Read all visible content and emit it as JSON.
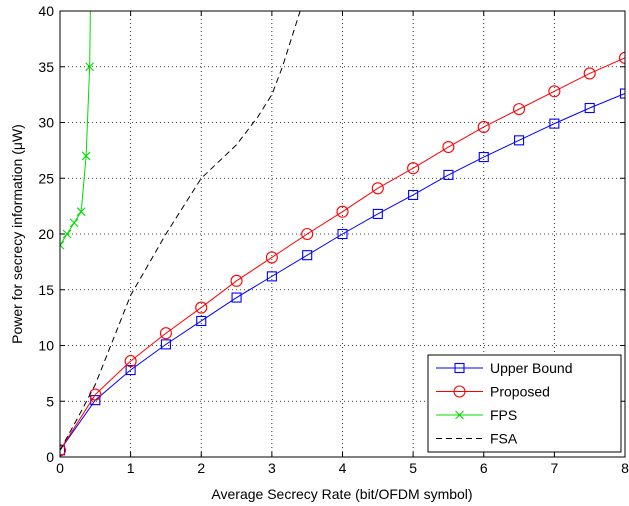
{
  "chart_data": {
    "type": "line",
    "xlabel": "Average Secrecy Rate (bit/OFDM symbol)",
    "ylabel": "Power for secrecy information (μW)",
    "xlim": [
      0,
      8
    ],
    "ylim": [
      0,
      40
    ],
    "xticks": [
      "0",
      "1",
      "2",
      "3",
      "4",
      "5",
      "6",
      "7",
      "8"
    ],
    "yticks": [
      "0",
      "5",
      "10",
      "15",
      "20",
      "25",
      "30",
      "35",
      "40"
    ],
    "grid": "dotted",
    "legend_position": "bottom-right",
    "series": [
      {
        "name": "Upper Bound",
        "color": "#0000ff",
        "marker": "square",
        "line": "solid",
        "x": [
          0,
          0.5,
          1,
          1.5,
          2,
          2.5,
          3,
          3.5,
          4,
          4.5,
          5,
          5.5,
          6,
          6.5,
          7,
          7.5,
          8
        ],
        "y": [
          0.6,
          5.1,
          7.8,
          10.1,
          12.2,
          14.3,
          16.2,
          18.1,
          20.0,
          21.8,
          23.5,
          25.3,
          26.9,
          28.4,
          29.9,
          31.3,
          32.6
        ]
      },
      {
        "name": "Proposed",
        "color": "#ff0000",
        "marker": "circle",
        "line": "solid",
        "x": [
          0,
          0.5,
          1,
          1.5,
          2,
          2.5,
          3,
          3.5,
          4,
          4.5,
          5,
          5.5,
          6,
          6.5,
          7,
          7.5,
          8
        ],
        "y": [
          0.6,
          5.6,
          8.6,
          11.1,
          13.4,
          15.8,
          17.9,
          20.0,
          22.0,
          24.1,
          25.9,
          27.8,
          29.6,
          31.2,
          32.8,
          34.4,
          35.8
        ]
      },
      {
        "name": "FPS",
        "color": "#00dd00",
        "marker": "x",
        "line": "solid",
        "x": [
          0,
          0.1,
          0.2,
          0.3,
          0.37,
          0.42,
          0.43
        ],
        "y": [
          19.0,
          20.0,
          21.0,
          22.0,
          27.0,
          35.0,
          40.0
        ],
        "marker_indices": [
          0,
          1,
          2,
          3,
          4,
          5
        ]
      },
      {
        "name": "FSA",
        "color": "#000000",
        "marker": "none",
        "line": "dashed",
        "x": [
          0,
          0.25,
          0.5,
          0.75,
          1,
          1.5,
          2,
          2.5,
          2.8,
          3,
          3.15,
          3.3,
          3.4,
          3.45
        ],
        "y": [
          0.6,
          3.5,
          6.5,
          10.5,
          14.5,
          20.0,
          25.0,
          28.0,
          30.5,
          32.5,
          35.0,
          38.0,
          40.0,
          41.0
        ]
      }
    ]
  }
}
